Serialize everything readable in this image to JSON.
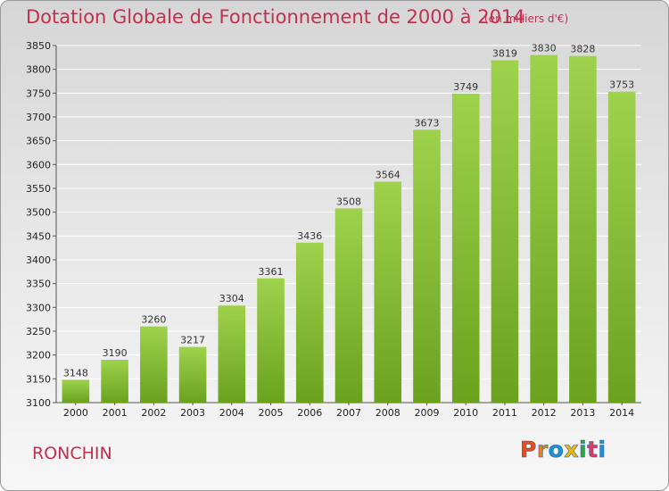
{
  "header": {
    "title": "Dotation Globale de Fonctionnement de 2000 à 2014",
    "unit": "(en milliers d'€)"
  },
  "footer": {
    "city": "RONCHIN",
    "logo": "Proxiti"
  },
  "colors": {
    "title": "#c03050",
    "bar_light": "#9fd24c",
    "bar_dark": "#6aa21e",
    "logo_letters": [
      "#e84d1c",
      "#f07c16",
      "#1f8fd6",
      "#f5b400",
      "#2aa84a",
      "#e8365d",
      "#1f8fd6"
    ]
  },
  "chart_data": {
    "type": "bar",
    "title": "Dotation Globale de Fonctionnement de 2000 à 2014",
    "subtitle": "(en milliers d'€)",
    "categories": [
      "2000",
      "2001",
      "2002",
      "2003",
      "2004",
      "2005",
      "2006",
      "2007",
      "2008",
      "2009",
      "2010",
      "2011",
      "2012",
      "2013",
      "2014"
    ],
    "values": [
      3148,
      3190,
      3260,
      3217,
      3304,
      3361,
      3436,
      3508,
      3564,
      3673,
      3749,
      3819,
      3830,
      3828,
      3753
    ],
    "ylim": [
      3100,
      3850
    ],
    "yticks": [
      3100,
      3150,
      3200,
      3250,
      3300,
      3350,
      3400,
      3450,
      3500,
      3550,
      3600,
      3650,
      3700,
      3750,
      3800,
      3850
    ],
    "grid": true,
    "xlabel": "",
    "ylabel": ""
  }
}
